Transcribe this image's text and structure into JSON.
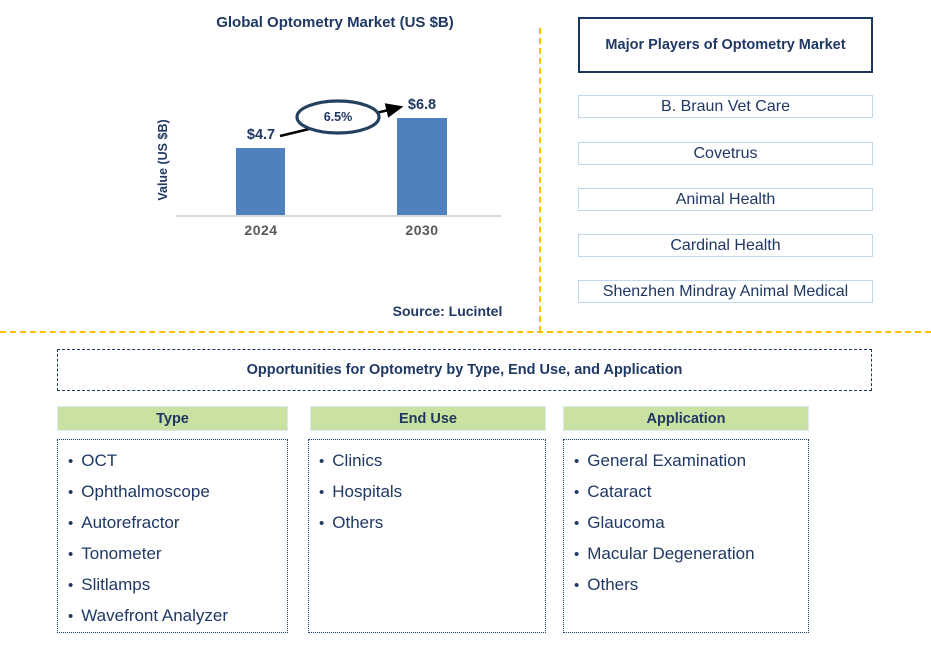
{
  "chart_data": {
    "type": "bar",
    "title": "Global Optometry Market (US $B)",
    "categories": [
      "2024",
      "2030"
    ],
    "values": [
      4.7,
      6.8
    ],
    "value_labels": [
      "$4.7",
      "$6.8"
    ],
    "xlabel": "",
    "ylabel": "Value (US $B)",
    "growth_annotation": "6.5%",
    "source": "Source: Lucintel",
    "bar_color": "#4E81BD",
    "grid": false,
    "legend": false
  },
  "major_players": {
    "title": "Major Players of Optometry Market",
    "items": [
      "B. Braun Vet Care",
      "Covetrus",
      "Animal Health",
      "Cardinal Health",
      "Shenzhen Mindray Animal Medical"
    ]
  },
  "opportunities": {
    "title": "Opportunities for Optometry by Type, End Use, and Application",
    "columns": [
      {
        "header": "Type",
        "items": [
          "OCT",
          "Ophthalmoscope",
          "Autorefractor",
          "Tonometer",
          "Slitlamps",
          "Wavefront Analyzer"
        ]
      },
      {
        "header": "End Use",
        "items": [
          "Clinics",
          "Hospitals",
          "Others"
        ]
      },
      {
        "header": "Application",
        "items": [
          "General Examination",
          "Cataract",
          "Glaucoma",
          "Macular Degeneration",
          "Others"
        ]
      }
    ]
  },
  "icons": {
    "bullet": "•"
  },
  "colors": {
    "navy_text": "#1F3864",
    "bar_blue": "#4E81BD",
    "accent_orange": "#FFC000",
    "player_border_blue": "#BDD7EE",
    "header_green": "#C9E2A1",
    "axis_gray": "#D9D9D9",
    "tick_gray": "#595959"
  }
}
